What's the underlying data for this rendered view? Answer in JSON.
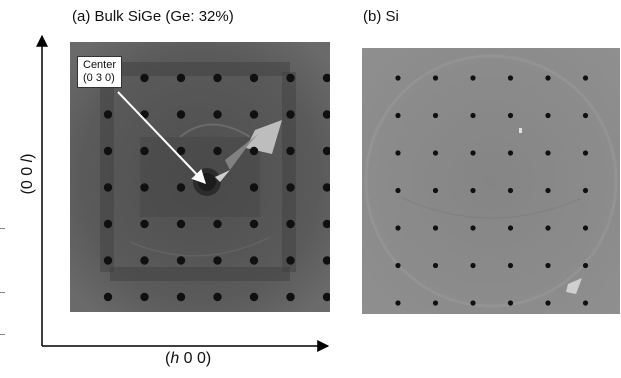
{
  "panels": [
    {
      "title": "(a) Bulk SiGe (Ge: 32%)"
    },
    {
      "title": "(b) Si"
    }
  ],
  "annotation": {
    "line1": "Center",
    "line2": "(0 3 0)"
  },
  "axes": {
    "x_label_prefix": "(",
    "x_label_var": "h",
    "x_label_suffix": " 0 0)",
    "y_label_prefix": "(0 0 ",
    "y_label_var": "l",
    "y_label_suffix": ")"
  },
  "colors": {
    "image_bg_a": "#585858",
    "image_bg_b": "#8a8a8a",
    "spot": "#101010",
    "arrow": "#ffffff",
    "axis": "#000000"
  }
}
